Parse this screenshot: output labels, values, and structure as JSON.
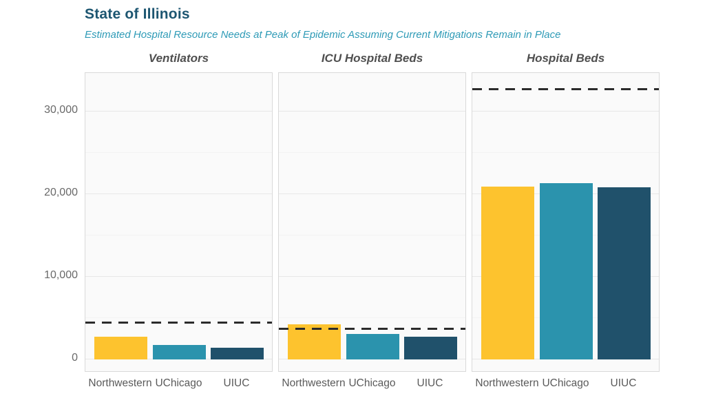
{
  "header": {
    "title": "State of Illinois",
    "subtitle": "Estimated Hospital Resource Needs at Peak of Epidemic Assuming Current Mitigations Remain in Place"
  },
  "colors": {
    "title": "#1d5671",
    "subtitle": "#2d9ab6",
    "panel_title": "#4f4f4f",
    "axis_text": "#696969",
    "bar_northwestern": "#fdc32e",
    "bar_uchicago": "#2b93ad",
    "bar_uiuc": "#20516b",
    "capacity_dash": "#2b2b2b",
    "panel_background": "#fafafa",
    "panel_border": "#d9d9d9"
  },
  "chart_data": {
    "type": "bar",
    "title": "State of Illinois",
    "subtitle": "Estimated Hospital Resource Needs at Peak of Epidemic Assuming Current Mitigations Remain in Place",
    "categories": [
      "Northwestern",
      "UChicago",
      "UIUC"
    ],
    "series_colors": [
      "#fdc32e",
      "#2b93ad",
      "#20516b"
    ],
    "y_ticks": [
      0,
      10000,
      20000,
      30000
    ],
    "y_tick_labels": [
      "0",
      "10,000",
      "20,000",
      "30,000"
    ],
    "minor_y_ticks": [
      5000,
      15000,
      25000
    ],
    "ylim": [
      0,
      34500
    ],
    "grid": "horizontal major every 10000, minor every 5000",
    "legend": "none",
    "annotation": "dashed horizontal line = current capacity",
    "panels": [
      {
        "title": "Ventilators",
        "values": [
          2750,
          1750,
          1450
        ],
        "capacity_line": 4400
      },
      {
        "title": "ICU Hospital Beds",
        "values": [
          4250,
          3050,
          2750
        ],
        "capacity_line": 3650
      },
      {
        "title": "Hospital Beds",
        "values": [
          20900,
          21300,
          20850
        ],
        "capacity_line": 32700
      }
    ]
  }
}
